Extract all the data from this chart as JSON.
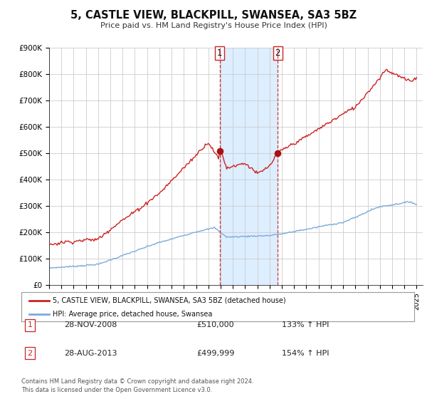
{
  "title": "5, CASTLE VIEW, BLACKPILL, SWANSEA, SA3 5BZ",
  "subtitle": "Price paid vs. HM Land Registry's House Price Index (HPI)",
  "hpi_color": "#7aaadd",
  "price_color": "#cc2222",
  "marker_color": "#aa1111",
  "background_color": "#ffffff",
  "grid_color": "#cccccc",
  "highlight_color": "#ddeeff",
  "transaction1_date": "28-NOV-2008",
  "transaction1_price": 510000,
  "transaction1_hpi": "133%",
  "transaction2_date": "28-AUG-2013",
  "transaction2_price": 499999,
  "transaction2_hpi": "154%",
  "legend_label1": "5, CASTLE VIEW, BLACKPILL, SWANSEA, SA3 5BZ (detached house)",
  "legend_label2": "HPI: Average price, detached house, Swansea",
  "footer1": "Contains HM Land Registry data © Crown copyright and database right 2024.",
  "footer2": "This data is licensed under the Open Government Licence v3.0.",
  "ylim": [
    0,
    900000
  ],
  "yticks": [
    0,
    100000,
    200000,
    300000,
    400000,
    500000,
    600000,
    700000,
    800000,
    900000
  ],
  "xlim_start": 1995.0,
  "xlim_end": 2025.5
}
